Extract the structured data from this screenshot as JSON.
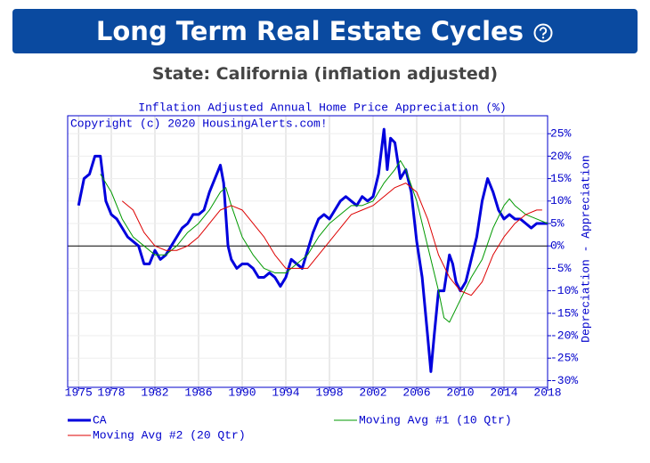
{
  "header": {
    "title": "Long Term Real Estate Cycles",
    "subtitle": "State: California (inflation adjusted)"
  },
  "chart_data": {
    "type": "line",
    "title": "Inflation Adjusted Annual Home Price Appreciation (%)",
    "annotation": "Copyright (c) 2020 HousingAlerts.com!",
    "y_label": "Depreciation - Appreciation",
    "xlim": [
      1974,
      2018
    ],
    "xticks": [
      1975,
      1978,
      1982,
      1986,
      1990,
      1994,
      1998,
      2002,
      2006,
      2010,
      2014,
      2018
    ],
    "ylim": [
      -31.5,
      29
    ],
    "yticks": [
      {
        "value": 25,
        "label": "25%"
      },
      {
        "value": 20,
        "label": "20%"
      },
      {
        "value": 15,
        "label": "15%"
      },
      {
        "value": 10,
        "label": "10%"
      },
      {
        "value": 5,
        "label": "5%"
      },
      {
        "value": 0,
        "label": "0%"
      },
      {
        "value": -5,
        "label": "-5%"
      },
      {
        "value": -10,
        "label": "-10%"
      },
      {
        "value": -15,
        "label": "-15%"
      },
      {
        "value": -20,
        "label": "-20%"
      },
      {
        "value": -25,
        "label": "-25%"
      },
      {
        "value": -30,
        "label": "-30%"
      }
    ],
    "grid": true,
    "series": [
      {
        "name": "CA",
        "color": "#0000dd",
        "width": 3,
        "x": [
          1975.0,
          1975.5,
          1976.0,
          1976.5,
          1977.0,
          1977.5,
          1978.0,
          1978.5,
          1979.0,
          1979.5,
          1980.0,
          1980.5,
          1981.0,
          1981.5,
          1982.0,
          1982.5,
          1983.0,
          1983.5,
          1984.0,
          1984.5,
          1985.0,
          1985.5,
          1986.0,
          1986.5,
          1987.0,
          1987.5,
          1988.0,
          1988.3,
          1988.7,
          1989.0,
          1989.5,
          1990.0,
          1990.5,
          1991.0,
          1991.5,
          1992.0,
          1992.5,
          1993.0,
          1993.5,
          1994.0,
          1994.5,
          1995.0,
          1995.5,
          1996.0,
          1996.5,
          1997.0,
          1997.5,
          1998.0,
          1998.5,
          1999.0,
          1999.5,
          2000.0,
          2000.5,
          2001.0,
          2001.5,
          2002.0,
          2002.5,
          2003.0,
          2003.3,
          2003.6,
          2004.0,
          2004.5,
          2005.0,
          2005.5,
          2006.0,
          2006.5,
          2007.0,
          2007.3,
          2007.6,
          2008.0,
          2008.5,
          2009.0,
          2009.3,
          2009.6,
          2010.0,
          2010.5,
          2011.0,
          2011.5,
          2012.0,
          2012.5,
          2013.0,
          2013.5,
          2014.0,
          2014.5,
          2015.0,
          2015.5,
          2016.0,
          2016.5,
          2017.0,
          2017.5,
          2018.0
        ],
        "values": [
          9,
          15,
          16,
          20,
          20,
          10,
          7,
          6,
          4,
          2,
          1,
          0,
          -4,
          -4,
          -1,
          -3,
          -2,
          0,
          2,
          4,
          5,
          7,
          7,
          8,
          12,
          15,
          18,
          14,
          0,
          -3,
          -5,
          -4,
          -4,
          -5,
          -7,
          -7,
          -6,
          -7,
          -9,
          -7,
          -3,
          -4,
          -5,
          -1,
          3,
          6,
          7,
          6,
          8,
          10,
          11,
          10,
          9,
          11,
          10,
          11,
          16,
          26,
          17,
          24,
          23,
          15,
          17,
          12,
          1,
          -7,
          -20,
          -28,
          -20,
          -10,
          -10,
          -2,
          -4,
          -8,
          -10,
          -8,
          -3,
          2,
          10,
          15,
          12,
          8,
          6,
          7,
          6,
          6,
          5,
          4,
          5,
          5,
          5
        ]
      },
      {
        "name": "Moving Avg #1 (10 Qtr)",
        "color": "#009900",
        "width": 1,
        "x": [
          1977,
          1978,
          1979,
          1980,
          1981,
          1982,
          1983,
          1984,
          1985,
          1986,
          1987,
          1988,
          1988.5,
          1989,
          1990,
          1991,
          1992,
          1993,
          1994,
          1995,
          1996,
          1997,
          1998,
          1999,
          2000,
          2001,
          2002,
          2003,
          2004,
          2004.5,
          2005,
          2006,
          2007,
          2008,
          2008.5,
          2009,
          2010,
          2011,
          2012,
          2013,
          2014,
          2014.5,
          2015,
          2016,
          2017,
          2018
        ],
        "values": [
          16,
          12,
          6,
          2,
          0,
          -2,
          -2,
          0,
          3,
          5,
          8,
          12,
          13,
          9,
          2,
          -2,
          -5,
          -6,
          -6,
          -4,
          -2,
          2,
          5,
          7,
          9,
          9,
          10,
          14,
          17,
          19,
          17,
          10,
          0,
          -10,
          -16,
          -17,
          -12,
          -7,
          -3,
          4,
          9,
          10.5,
          9,
          7,
          6,
          5
        ]
      },
      {
        "name": "Moving Avg #2 (20 Qtr)",
        "color": "#dd0000",
        "width": 1,
        "x": [
          1979,
          1980,
          1981,
          1982,
          1983,
          1984,
          1985,
          1986,
          1987,
          1988,
          1989,
          1990,
          1991,
          1992,
          1993,
          1994,
          1995,
          1996,
          1997,
          1998,
          1999,
          2000,
          2001,
          2002,
          2003,
          2004,
          2005,
          2006,
          2007,
          2008,
          2009,
          2010,
          2011,
          2012,
          2013,
          2014,
          2015,
          2016,
          2017,
          2017.5
        ],
        "values": [
          10,
          8,
          3,
          0,
          -1,
          -1,
          0,
          2,
          5,
          8,
          9,
          8,
          5,
          2,
          -2,
          -5,
          -5,
          -5,
          -2,
          1,
          4,
          7,
          8,
          9,
          11,
          13,
          14,
          12,
          6,
          -2,
          -7,
          -10,
          -11,
          -8,
          -2,
          2,
          5,
          7,
          8,
          8
        ]
      }
    ]
  }
}
